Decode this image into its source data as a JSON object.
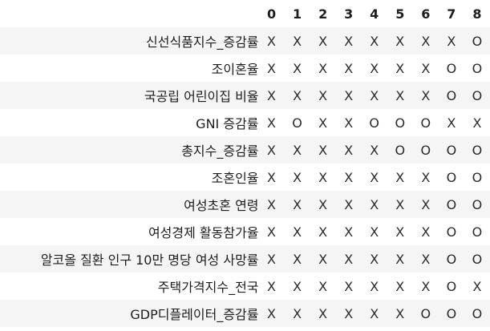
{
  "columns": [
    "0",
    "1",
    "2",
    "3",
    "4",
    "5",
    "6",
    "7",
    "8"
  ],
  "rows": [
    {
      "label": "신선식품지수_증감률",
      "values": [
        "X",
        "X",
        "X",
        "X",
        "X",
        "X",
        "X",
        "X",
        "O"
      ]
    },
    {
      "label": "조이혼율",
      "values": [
        "X",
        "X",
        "X",
        "X",
        "X",
        "X",
        "X",
        "O",
        "O"
      ]
    },
    {
      "label": "국공립 어린이집 비율",
      "values": [
        "X",
        "X",
        "X",
        "X",
        "X",
        "X",
        "X",
        "O",
        "O"
      ]
    },
    {
      "label": "GNI 증감률",
      "values": [
        "X",
        "O",
        "X",
        "X",
        "O",
        "O",
        "O",
        "X",
        "X"
      ]
    },
    {
      "label": "총지수_증감률",
      "values": [
        "X",
        "X",
        "X",
        "X",
        "X",
        "O",
        "O",
        "O",
        "O"
      ]
    },
    {
      "label": "조혼인율",
      "values": [
        "X",
        "X",
        "X",
        "X",
        "X",
        "X",
        "X",
        "O",
        "O"
      ]
    },
    {
      "label": "여성초혼 연령",
      "values": [
        "X",
        "X",
        "X",
        "X",
        "X",
        "X",
        "X",
        "O",
        "O"
      ]
    },
    {
      "label": "여성경제 활동참가율",
      "values": [
        "X",
        "X",
        "X",
        "X",
        "X",
        "X",
        "X",
        "O",
        "O"
      ]
    },
    {
      "label": "알코올 질환 인구 10만 명당 여성 사망률",
      "values": [
        "X",
        "X",
        "X",
        "X",
        "X",
        "X",
        "X",
        "O",
        "O"
      ]
    },
    {
      "label": "주택가격지수_전국",
      "values": [
        "X",
        "X",
        "X",
        "X",
        "X",
        "X",
        "X",
        "O",
        "X"
      ]
    },
    {
      "label": "GDP디플레이터_증감률",
      "values": [
        "X",
        "X",
        "X",
        "X",
        "X",
        "X",
        "O",
        "O",
        "O"
      ]
    }
  ]
}
